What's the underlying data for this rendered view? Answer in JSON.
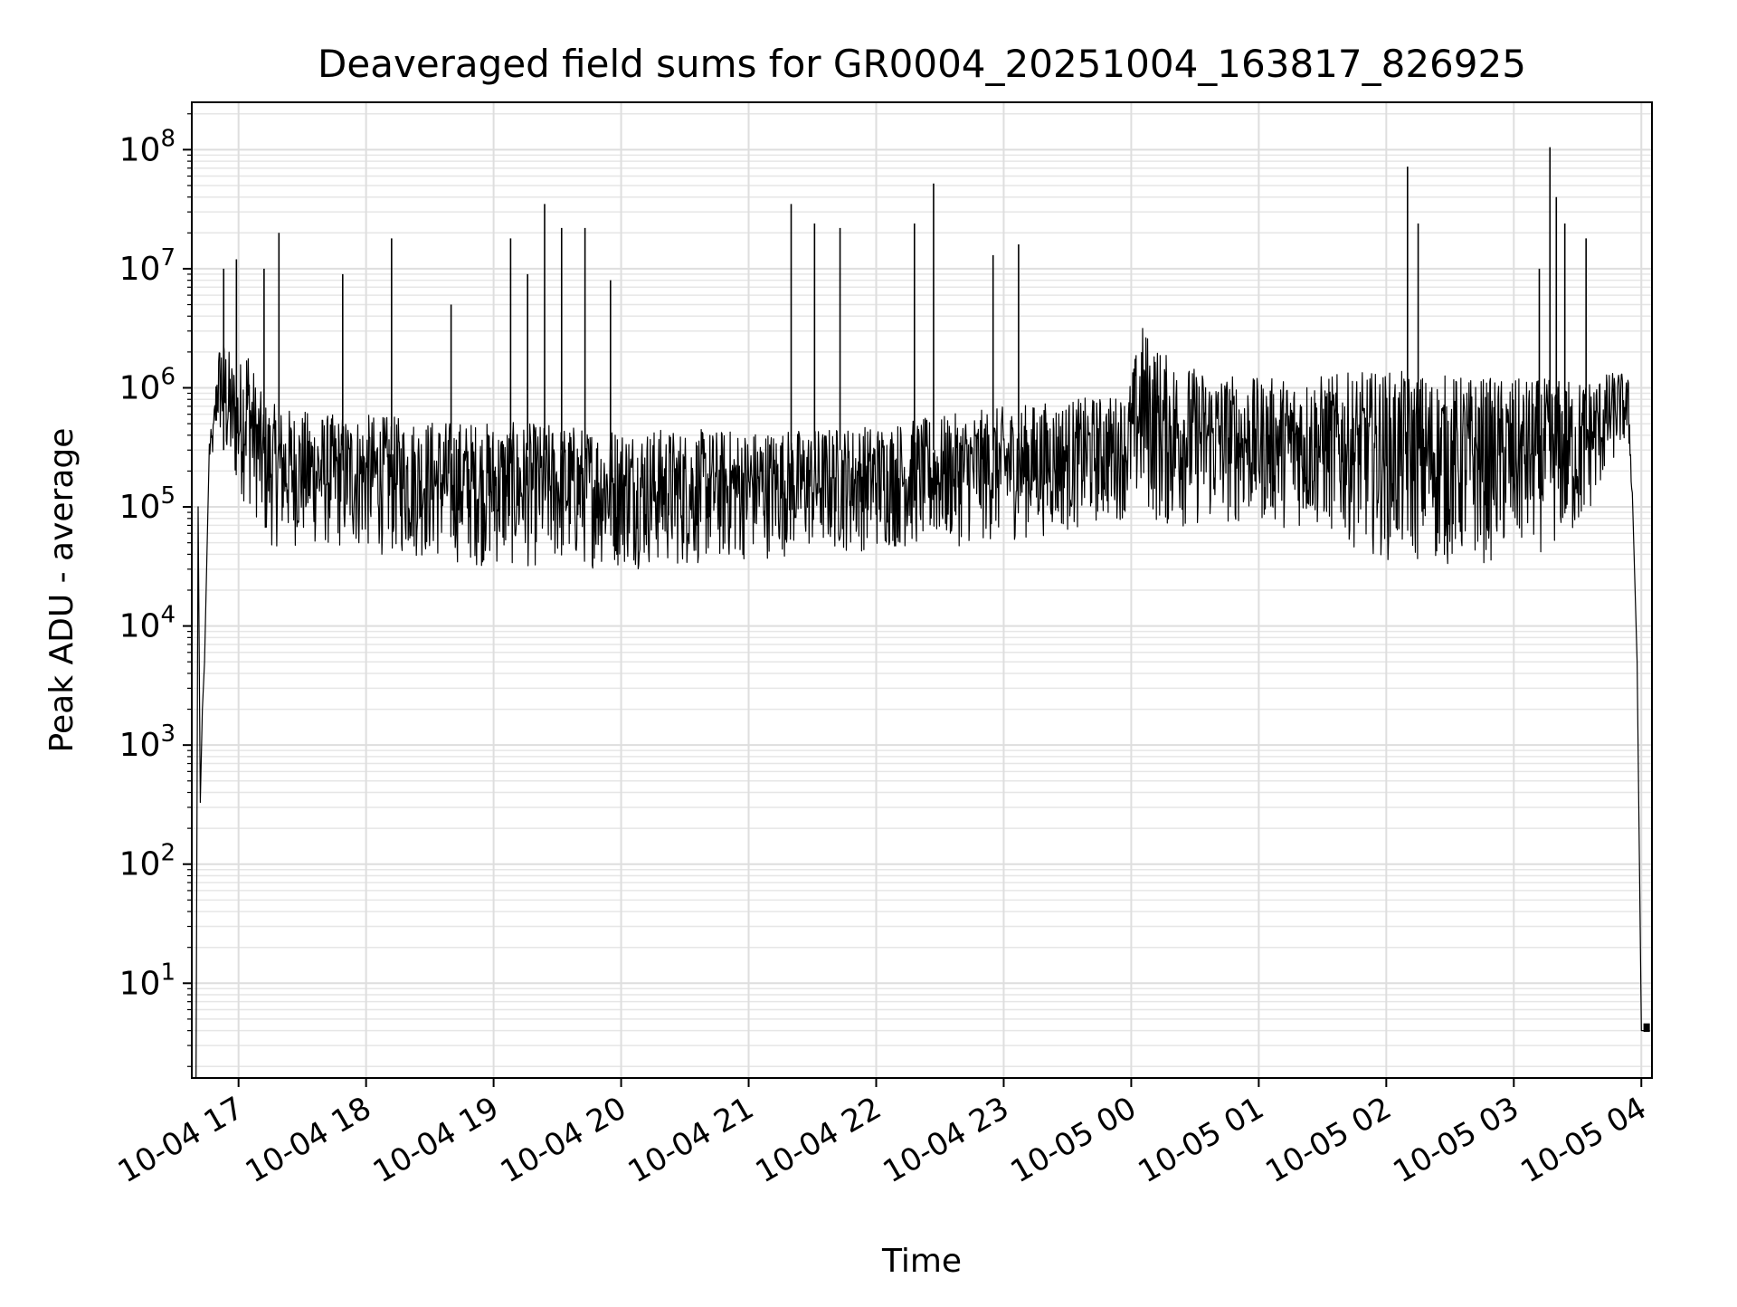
{
  "chart_data": {
    "type": "line",
    "title": "Deaveraged field sums for GR0004_20251004_163817_826925",
    "xlabel": "Time",
    "ylabel": "Peak ADU - average",
    "yscale": "log",
    "xlim": [
      "2025-10-04 16:38",
      "2025-10-05 04:05"
    ],
    "ylim": [
      1.6,
      250000000.0
    ],
    "grid": true,
    "xtick_labels": [
      "10-04 17",
      "10-04 18",
      "10-04 19",
      "10-04 20",
      "10-04 21",
      "10-04 22",
      "10-04 23",
      "10-05 00",
      "10-05 01",
      "10-05 02",
      "10-05 03",
      "10-05 04"
    ],
    "xtick_values": [
      "2025-10-04 17:00",
      "2025-10-04 18:00",
      "2025-10-04 19:00",
      "2025-10-04 20:00",
      "2025-10-04 21:00",
      "2025-10-04 22:00",
      "2025-10-04 23:00",
      "2025-10-05 00:00",
      "2025-10-05 01:00",
      "2025-10-05 02:00",
      "2025-10-05 03:00",
      "2025-10-05 04:00"
    ],
    "ytick_values": [
      10,
      100,
      1000,
      10000,
      100000,
      1000000,
      10000000,
      100000000
    ],
    "ytick_labels": [
      {
        "base": "10",
        "exp": "1"
      },
      {
        "base": "10",
        "exp": "2"
      },
      {
        "base": "10",
        "exp": "3"
      },
      {
        "base": "10",
        "exp": "4"
      },
      {
        "base": "10",
        "exp": "5"
      },
      {
        "base": "10",
        "exp": "6"
      },
      {
        "base": "10",
        "exp": "7"
      },
      {
        "base": "10",
        "exp": "8"
      }
    ],
    "line_color": "#000000",
    "series": [
      {
        "x": [
          "2025-10-04 16:40",
          "2025-10-04 16:41",
          "2025-10-04 16:42",
          "2025-10-04 16:43",
          "2025-10-04 16:44",
          "2025-10-04 16:46",
          "2025-10-04 16:48",
          "2025-10-04 16:50",
          "2025-10-04 16:52",
          "2025-10-04 16:54",
          "2025-10-04 16:56",
          "2025-10-04 17:00",
          "2025-10-04 17:04",
          "2025-10-04 17:08",
          "2025-10-04 17:12",
          "2025-10-04 17:15",
          "2025-10-04 17:20",
          "2025-10-04 17:30",
          "2025-10-04 17:45",
          "2025-10-04 18:00",
          "2025-10-04 18:30",
          "2025-10-04 19:00",
          "2025-10-04 19:30",
          "2025-10-04 20:00",
          "2025-10-04 20:30",
          "2025-10-04 21:00",
          "2025-10-04 21:30",
          "2025-10-04 22:00",
          "2025-10-04 22:30",
          "2025-10-04 23:00",
          "2025-10-04 23:30",
          "2025-10-04 23:58",
          "2025-10-05 00:05",
          "2025-10-05 00:15",
          "2025-10-05 00:30",
          "2025-10-05 01:00",
          "2025-10-05 01:30",
          "2025-10-05 02:00",
          "2025-10-05 02:30",
          "2025-10-05 03:00",
          "2025-10-05 03:30",
          "2025-10-05 03:50",
          "2025-10-05 03:54",
          "2025-10-05 03:56",
          "2025-10-05 03:58",
          "2025-10-05 04:00",
          "2025-10-05 04:01",
          "2025-10-05 04:04"
        ],
        "y": [
          1.6,
          100000,
          330,
          2000,
          5000,
          200000,
          300000,
          1000000,
          2000000,
          800000,
          500000,
          400000,
          1000000,
          600000,
          250000,
          200000,
          180000,
          200000,
          180000,
          170000,
          150000,
          140000,
          135000,
          130000,
          130000,
          135000,
          140000,
          150000,
          170000,
          200000,
          230000,
          300000,
          1100000,
          800000,
          500000,
          400000,
          350000,
          330000,
          300000,
          280000,
          500000,
          1100000,
          700000,
          100000,
          5000,
          4,
          4,
          4
        ],
        "low_envelope": [
          1.6,
          100000,
          330,
          2000,
          5000,
          200000,
          250000,
          400000,
          300000,
          200000,
          150000,
          120000,
          100000,
          80000,
          45000,
          45000,
          45000,
          45000,
          42000,
          40000,
          35000,
          30000,
          30000,
          30000,
          30000,
          35000,
          40000,
          42000,
          45000,
          50000,
          60000,
          80000,
          90000,
          60000,
          65000,
          70000,
          60000,
          35000,
          30000,
          35000,
          50000,
          300000,
          300000,
          100000,
          5000,
          4,
          4,
          4
        ],
        "high_envelope": [
          1.6,
          100000,
          330,
          2000,
          5000,
          400000,
          500000,
          2000000,
          3000000,
          2500000,
          2000000,
          1500000,
          3000000,
          1200000,
          800000,
          750000,
          700000,
          650000,
          600000,
          600000,
          550000,
          520000,
          500000,
          480000,
          450000,
          450000,
          460000,
          500000,
          580000,
          700000,
          800000,
          900000,
          3500000,
          2000000,
          1500000,
          1200000,
          1300000,
          1400000,
          1300000,
          1200000,
          1200000,
          1400000,
          1200000,
          100000,
          5000,
          4,
          4,
          4
        ],
        "spikes": [
          {
            "x": "2025-10-04 16:53",
            "y": 10000000
          },
          {
            "x": "2025-10-04 16:59",
            "y": 12000000
          },
          {
            "x": "2025-10-04 17:12",
            "y": 10000000
          },
          {
            "x": "2025-10-04 17:19",
            "y": 20000000
          },
          {
            "x": "2025-10-04 17:49",
            "y": 9000000
          },
          {
            "x": "2025-10-04 18:12",
            "y": 18000000
          },
          {
            "x": "2025-10-04 18:40",
            "y": 5000000
          },
          {
            "x": "2025-10-04 19:08",
            "y": 18000000
          },
          {
            "x": "2025-10-04 19:16",
            "y": 9000000
          },
          {
            "x": "2025-10-04 19:24",
            "y": 35000000
          },
          {
            "x": "2025-10-04 19:32",
            "y": 22000000
          },
          {
            "x": "2025-10-04 19:43",
            "y": 22000000
          },
          {
            "x": "2025-10-04 19:55",
            "y": 8000000
          },
          {
            "x": "2025-10-04 21:20",
            "y": 35000000
          },
          {
            "x": "2025-10-04 21:31",
            "y": 24000000
          },
          {
            "x": "2025-10-04 21:43",
            "y": 22000000
          },
          {
            "x": "2025-10-04 22:18",
            "y": 24000000
          },
          {
            "x": "2025-10-04 22:27",
            "y": 52000000
          },
          {
            "x": "2025-10-04 22:55",
            "y": 13000000
          },
          {
            "x": "2025-10-04 23:07",
            "y": 16000000
          },
          {
            "x": "2025-10-05 02:10",
            "y": 72000000
          },
          {
            "x": "2025-10-05 02:15",
            "y": 24000000
          },
          {
            "x": "2025-10-05 03:12",
            "y": 10000000
          },
          {
            "x": "2025-10-05 03:17",
            "y": 105000000
          },
          {
            "x": "2025-10-05 03:20",
            "y": 40000000
          },
          {
            "x": "2025-10-05 03:24",
            "y": 24000000
          },
          {
            "x": "2025-10-05 03:34",
            "y": 18000000
          }
        ]
      }
    ]
  }
}
